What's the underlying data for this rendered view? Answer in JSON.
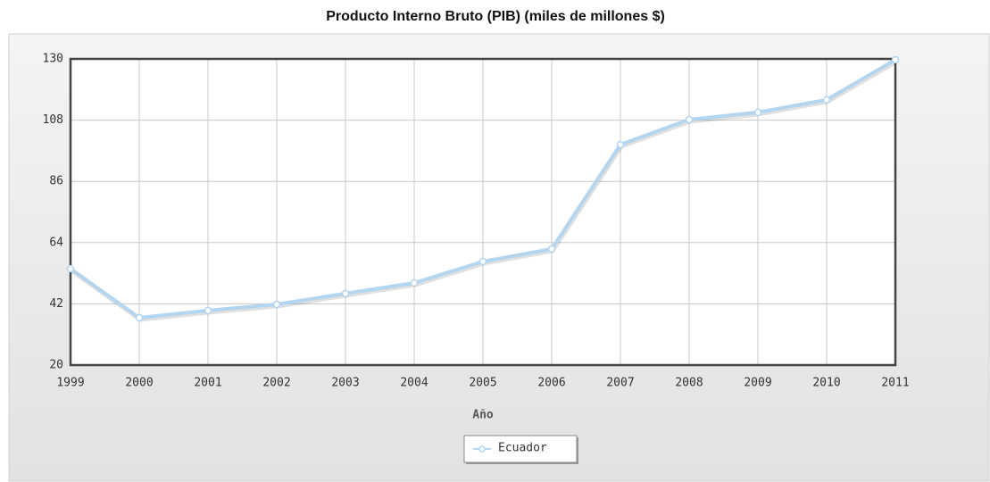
{
  "chart_data": {
    "type": "line",
    "title": "Producto Interno Bruto (PIB) (miles de millones $)",
    "x_label": "Año",
    "categories": [
      "1999",
      "2000",
      "2001",
      "2002",
      "2003",
      "2004",
      "2005",
      "2006",
      "2007",
      "2008",
      "2009",
      "2010",
      "2011"
    ],
    "series": [
      {
        "name": "Ecuador",
        "color": "#b3d5f0",
        "values": [
          54.6,
          37.0,
          39.6,
          41.8,
          45.7,
          49.5,
          57.2,
          61.7,
          99.2,
          108.2,
          110.8,
          115.3,
          129.7
        ]
      }
    ],
    "ylim": [
      20,
      130
    ],
    "yticks": [
      20,
      42,
      64,
      86,
      108,
      130
    ],
    "grid": true,
    "legend": "bottom"
  }
}
